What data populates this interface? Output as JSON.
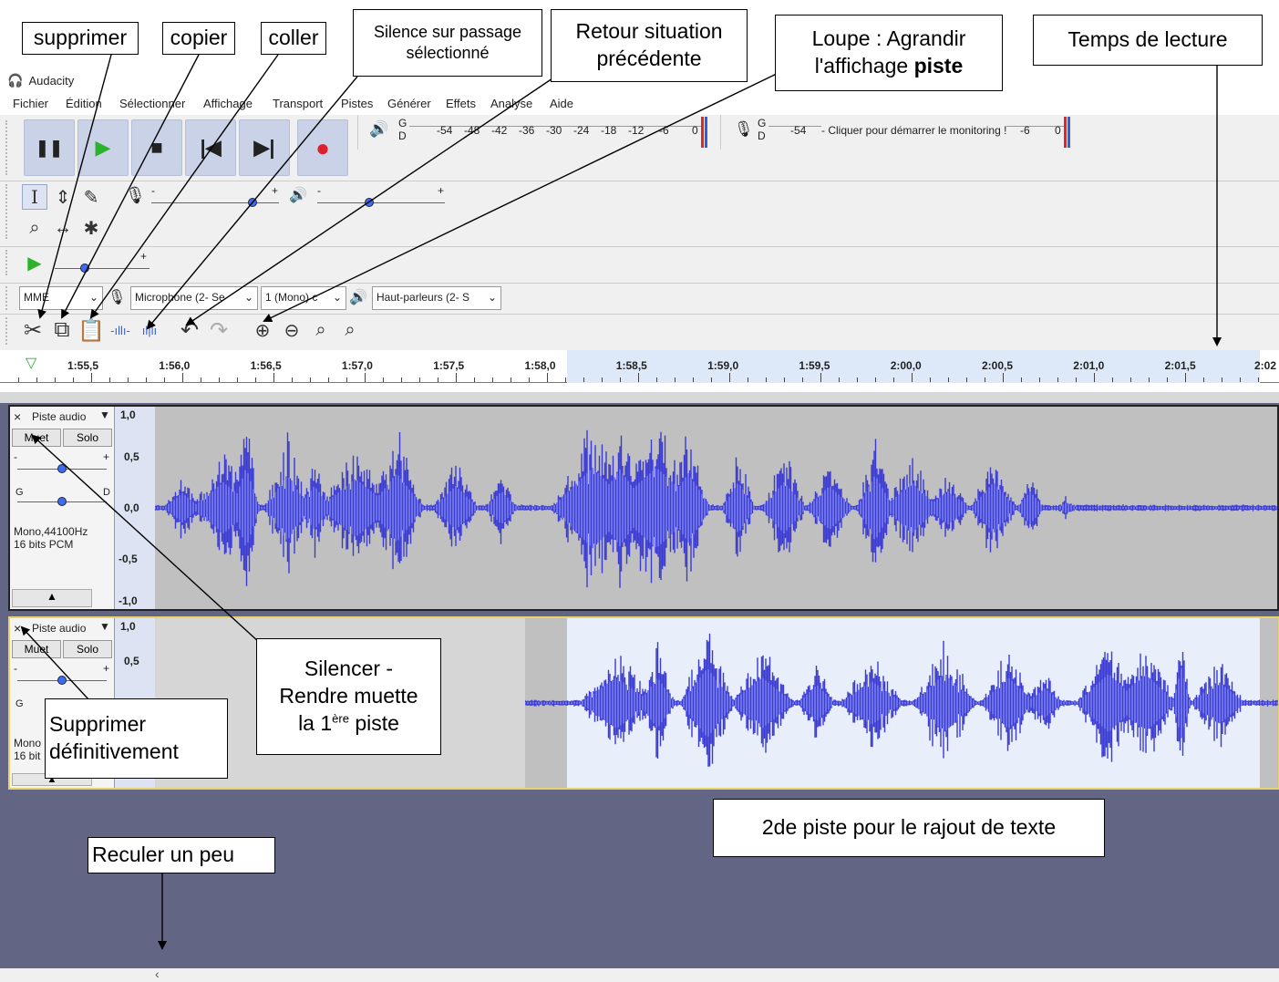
{
  "app": {
    "title": "Audacity"
  },
  "menu": [
    "Fichier",
    "Édition",
    "Sélectionner",
    "Affichage",
    "Transport",
    "Pistes",
    "Générer",
    "Effets",
    "Analyse",
    "Aide"
  ],
  "meters": {
    "play_channels": [
      "G",
      "D"
    ],
    "play_scale": [
      "-54",
      "-48",
      "-42",
      "-36",
      "-30",
      "-24",
      "-18",
      "-12",
      "-6",
      "0"
    ],
    "rec_channels": [
      "G",
      "D"
    ],
    "rec_scale_left": "-54",
    "rec_prompt": "- Cliquer pour démarrer le monitoring !",
    "rec_scale_right": [
      "-6",
      "0"
    ]
  },
  "mixer": {
    "minus": "-",
    "plus": "+"
  },
  "device": {
    "host": "MME",
    "recording_device": "Microphone (2- Se",
    "channels": "1 (Mono) c",
    "playback_device": "Haut-parleurs (2- S"
  },
  "timeline": {
    "ticks": [
      "1:55,5",
      "1:56,0",
      "1:56,5",
      "1:57,0",
      "1:57,5",
      "1:58,0",
      "1:58,5",
      "1:59,0",
      "1:59,5",
      "2:00,0",
      "2:00,5",
      "2:01,0",
      "2:01,5",
      "2:02"
    ],
    "selection_start": "1:58,0",
    "selection_end": "2:02"
  },
  "tracks": [
    {
      "name": "Piste audio",
      "mute": "Muet",
      "solo": "Solo",
      "gain_minus": "-",
      "gain_plus": "+",
      "pan_left": "G",
      "pan_right": "D",
      "format_line1": "Mono,44100Hz",
      "format_line2": "16 bits PCM",
      "scale": [
        "1,0",
        "0,5",
        "0,0",
        "-0,5",
        "-1,0"
      ],
      "collapse": "▲"
    },
    {
      "name": "Piste audio",
      "mute": "Muet",
      "solo": "Solo",
      "gain_minus": "-",
      "gain_plus": "+",
      "pan_left": "G",
      "format_line1": "Mono",
      "format_line2": "16 bit",
      "scale": [
        "1,0",
        "0,5"
      ],
      "collapse": "▲"
    }
  ],
  "annotations": {
    "supprimer": "supprimer",
    "copier": "copier",
    "coller": "coller",
    "silence_line1": "Silence sur passage",
    "silence_line2": "sélectionné",
    "retour_line1": "Retour situation",
    "retour_line2": "précédente",
    "loupe_line1": "Loupe : Agrandir",
    "loupe_line2a": "l'affichage ",
    "loupe_line2b": "piste",
    "temps": "Temps de lecture",
    "silencer_line1": "Silencer -",
    "silencer_line2": "Rendre muette",
    "silencer_line3a": "la 1",
    "silencer_sup": "ère",
    "silencer_line3b": " piste",
    "supprimer_def_line1": "Supprimer",
    "supprimer_def_line2": "définitivement",
    "seconde_piste": "2de piste pour le rajout de texte",
    "reculer": "Reculer un peu"
  },
  "scroll": {
    "left_arrow": "‹"
  }
}
